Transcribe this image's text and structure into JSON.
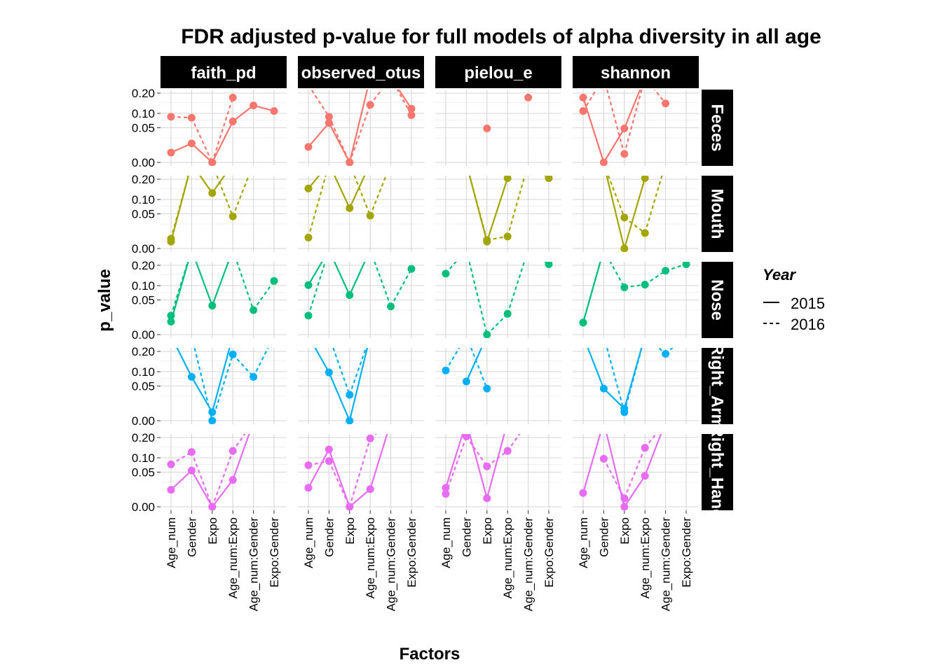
{
  "chart_data": {
    "type": "line",
    "title": "FDR adjusted p-value for full models of alpha diversity in all age",
    "xlabel": "Factors",
    "ylabel": "p_value",
    "categories": [
      "Age_num",
      "Gender",
      "Expo",
      "Age_num:Expo",
      "Age_num:Gender",
      "Expo:Gender"
    ],
    "column_facets": [
      "faith_pd",
      "observed_otus",
      "pielou_e",
      "shannon"
    ],
    "row_facets": [
      "Feces",
      "Mouth",
      "Nose",
      "Right_Arm",
      "Right_Hand"
    ],
    "ylim": [
      0,
      0.2
    ],
    "y_ticks": [
      "0.00",
      "0.05",
      "0.10",
      "0.20"
    ],
    "y_tick_values": [
      0,
      0.05,
      0.1,
      0.2
    ],
    "y_scale": "sqrt",
    "grid": true,
    "colors": {
      "Feces": "#F8766D",
      "Mouth": "#A3A500",
      "Nose": "#00BF7D",
      "Right_Arm": "#00B0F6",
      "Right_Hand": "#E76BF3"
    },
    "legend": {
      "title": "Year",
      "position": "right",
      "entries": [
        {
          "label": "2015",
          "linetype": "solid"
        },
        {
          "label": "2016",
          "linetype": "dashed"
        }
      ]
    },
    "panels": {
      "Feces": {
        "faith_pd": {
          "2015": [
            0.004,
            0.015,
            0.0,
            0.07,
            0.135,
            0.11
          ],
          "2016": [
            0.087,
            0.083,
            0.0,
            0.175,
            null,
            null
          ]
        },
        "observed_otus": {
          "2015": [
            0.01,
            0.065,
            0.0,
            0.3,
            0.3,
            0.12
          ],
          "2016": [
            0.25,
            0.087,
            0.0,
            0.138,
            0.3,
            0.093
          ]
        },
        "pielou_e": {
          "2015": [
            null,
            null,
            null,
            null,
            null,
            null
          ],
          "2016": [
            0.3,
            null,
            0.048,
            null,
            0.175,
            null
          ]
        },
        "shannon": {
          "2015": [
            0.175,
            0.0,
            0.048,
            0.3,
            null,
            null
          ],
          "2016": [
            0.11,
            0.3,
            0.003,
            0.3,
            0.145,
            null
          ]
        }
      },
      "Mouth": {
        "faith_pd": {
          "2015": [
            0.002,
            0.3,
            0.128,
            0.3,
            null,
            null
          ],
          "2016": [
            0.004,
            0.3,
            0.3,
            0.043,
            0.3,
            null
          ]
        },
        "observed_otus": {
          "2015": [
            0.15,
            0.3,
            0.068,
            0.3,
            null,
            null
          ],
          "2016": [
            0.005,
            0.3,
            0.3,
            0.045,
            0.3,
            null
          ]
        },
        "pielou_e": {
          "2015": [
            null,
            0.3,
            0.002,
            0.206,
            null,
            null
          ],
          "2016": [
            null,
            0.3,
            0.003,
            0.006,
            0.3,
            0.206
          ]
        },
        "shannon": {
          "2015": [
            null,
            0.3,
            0.0,
            0.206,
            null,
            null
          ],
          "2016": [
            null,
            0.3,
            0.04,
            0.01,
            0.3,
            null
          ]
        }
      },
      "Nose": {
        "faith_pd": {
          "2015": [
            0.007,
            0.3,
            0.035,
            0.3,
            null,
            null
          ],
          "2016": [
            0.015,
            0.3,
            null,
            0.3,
            0.025,
            0.12
          ]
        },
        "observed_otus": {
          "2015": [
            0.102,
            0.3,
            0.065,
            0.3,
            null,
            null
          ],
          "2016": [
            0.015,
            0.3,
            null,
            0.3,
            0.033,
            0.18
          ]
        },
        "pielou_e": {
          "2015": [
            null,
            null,
            null,
            null,
            null,
            null
          ],
          "2016": [
            0.155,
            0.3,
            0.0,
            0.018,
            0.3,
            0.206
          ]
        },
        "shannon": {
          "2015": [
            0.006,
            0.3,
            null,
            null,
            null,
            null
          ],
          "2016": [
            0.006,
            0.3,
            0.093,
            0.104,
            0.17,
            0.206
          ]
        }
      },
      "Right_Arm": {
        "faith_pd": {
          "2015": [
            0.3,
            0.08,
            0.003,
            0.3,
            null,
            null
          ],
          "2016": [
            null,
            0.3,
            0.0,
            0.183,
            0.08,
            0.3
          ]
        },
        "observed_otus": {
          "2015": [
            0.3,
            0.097,
            0.0,
            0.3,
            null,
            null
          ],
          "2016": [
            null,
            0.3,
            0.028,
            0.3,
            null,
            null
          ]
        },
        "pielou_e": {
          "2015": [
            null,
            0.064,
            0.3,
            null,
            null,
            null
          ],
          "2016": [
            0.105,
            0.3,
            0.043,
            null,
            null,
            null
          ]
        },
        "shannon": {
          "2015": [
            0.3,
            0.043,
            0.006,
            0.3,
            null,
            null
          ],
          "2016": [
            null,
            0.3,
            0.003,
            0.3,
            0.186,
            0.3
          ]
        }
      },
      "Right_Hand": {
        "faith_pd": {
          "2015": [
            0.012,
            0.055,
            0.0,
            0.03,
            0.3,
            null
          ],
          "2016": [
            0.075,
            0.125,
            0.0,
            0.13,
            0.3,
            null
          ]
        },
        "observed_otus": {
          "2015": [
            0.015,
            0.137,
            0.0,
            0.013,
            0.3,
            null
          ],
          "2016": [
            0.072,
            0.087,
            0.0,
            0.195,
            0.3,
            null
          ]
        },
        "pielou_e": {
          "2015": [
            0.015,
            0.3,
            0.003,
            0.3,
            null,
            null
          ],
          "2016": [
            0.007,
            0.206,
            0.068,
            0.13,
            0.3,
            null
          ]
        },
        "shannon": {
          "2015": [
            0.008,
            0.3,
            0.0,
            0.04,
            0.3,
            null
          ],
          "2016": [
            null,
            0.096,
            0.003,
            0.145,
            0.3,
            null
          ]
        }
      }
    }
  }
}
